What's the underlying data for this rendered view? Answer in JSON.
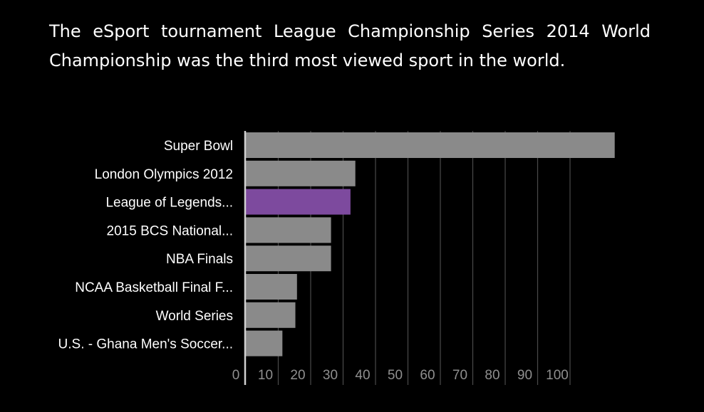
{
  "headline": "The eSport tournament League Championship Series 2014 World Championship was the third most viewed sport in the world.",
  "colors": {
    "background": "#000000",
    "bar_default": "#8a8a8a",
    "bar_highlight": "#7d4a9e",
    "gridline": "#4a4a4a",
    "baseline": "#d0d0d0",
    "text": "#ffffff",
    "tick_text": "#8f8f8f"
  },
  "chart_data": {
    "type": "bar",
    "orientation": "horizontal",
    "title": "",
    "xlabel": "",
    "ylabel": "",
    "categories": [
      "Super Bowl",
      "London Olympics 2012",
      "League of Legends...",
      "2015 BCS National...",
      "NBA Finals",
      "NCAA Basketball Final F...",
      "World Series",
      "U.S. - Ghana Men's Soccer..."
    ],
    "values": [
      114,
      34,
      32.5,
      26.5,
      26.5,
      16,
      15.5,
      11.5
    ],
    "highlight_index": 2,
    "xlim": [
      0,
      114
    ],
    "x_ticks": [
      0,
      10,
      20,
      30,
      40,
      50,
      60,
      70,
      80,
      90,
      100
    ],
    "grid": true,
    "legend": "none"
  }
}
